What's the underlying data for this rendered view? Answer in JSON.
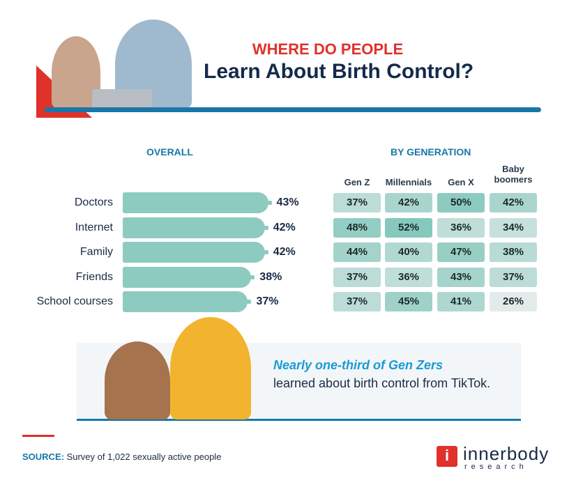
{
  "header": {
    "kicker": "WHERE DO PEOPLE",
    "title": "Learn About Birth Control?"
  },
  "overall_heading": "OVERALL",
  "generation_heading": "BY GENERATION",
  "chart_data": [
    {
      "type": "bar",
      "orientation": "horizontal",
      "title": "OVERALL",
      "categories": [
        "Doctors",
        "Internet",
        "Family",
        "Friends",
        "School courses"
      ],
      "values": [
        43,
        42,
        42,
        38,
        37
      ],
      "labels": [
        "43%",
        "42%",
        "42%",
        "38%",
        "37%"
      ],
      "color": "#8dcbc0"
    },
    {
      "type": "heatmap",
      "title": "BY GENERATION",
      "columns": [
        "Gen Z",
        "Millennials",
        "Gen X",
        "Baby boomers"
      ],
      "rows": [
        "Doctors",
        "Internet",
        "Family",
        "Friends",
        "School courses"
      ],
      "values": [
        [
          37,
          42,
          50,
          42
        ],
        [
          48,
          52,
          36,
          34
        ],
        [
          44,
          40,
          47,
          38
        ],
        [
          37,
          36,
          43,
          37
        ],
        [
          37,
          45,
          41,
          26
        ]
      ],
      "color_low": "#e3ebea",
      "color_high": "#86c8bc"
    }
  ],
  "callout": {
    "highlight": "Nearly one-third of Gen Zers",
    "body": "learned about birth control from TikTok."
  },
  "source": {
    "label": "SOURCE:",
    "text": " Survey of 1,022 sexually active people"
  },
  "logo": {
    "name": "innerbody",
    "sub": "research",
    "color": "#e0312b"
  }
}
